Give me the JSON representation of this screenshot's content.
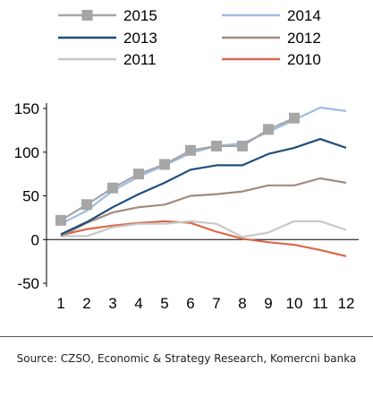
{
  "chart_data": {
    "type": "line",
    "x": [
      1,
      2,
      3,
      4,
      5,
      6,
      7,
      8,
      9,
      10,
      11,
      12
    ],
    "xlim": [
      1,
      12
    ],
    "ylim": [
      -50,
      150
    ],
    "y_ticks": [
      150,
      100,
      50,
      0,
      -50
    ],
    "grid": false,
    "legend_position": "top",
    "series": [
      {
        "name": "2015",
        "color": "#a6a6a6",
        "marker": "square",
        "values": [
          22,
          40,
          59,
          75,
          86,
          102,
          107,
          107,
          126,
          139,
          null,
          null
        ]
      },
      {
        "name": "2014",
        "color": "#9dbbe3",
        "values": [
          18,
          33,
          56,
          72,
          85,
          99,
          107,
          110,
          123,
          137,
          151,
          147
        ]
      },
      {
        "name": "2013",
        "color": "#1f4e79",
        "values": [
          6,
          20,
          37,
          52,
          65,
          80,
          85,
          85,
          98,
          105,
          115,
          105
        ]
      },
      {
        "name": "2012",
        "color": "#a28a7d",
        "values": [
          4,
          19,
          31,
          37,
          40,
          50,
          52,
          55,
          62,
          62,
          70,
          65
        ]
      },
      {
        "name": "2011",
        "color": "#c8c8c8",
        "values": [
          4,
          4,
          14,
          18,
          18,
          21,
          18,
          3,
          8,
          21,
          21,
          11
        ]
      },
      {
        "name": "2010",
        "color": "#d9694a",
        "values": [
          5,
          12,
          16,
          19,
          21,
          19,
          9,
          1,
          -3,
          -6,
          -12,
          -19
        ]
      }
    ]
  },
  "source": "Source: CZSO, Economic & Strategy Research, Komercni banka"
}
